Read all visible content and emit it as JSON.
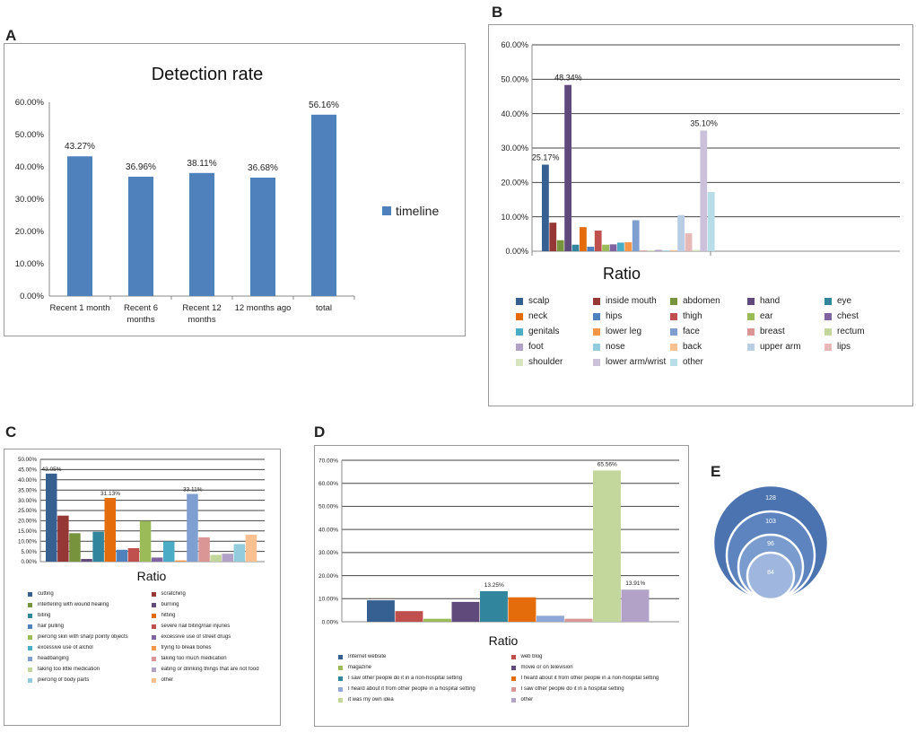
{
  "panels": {
    "a": "A",
    "b": "B",
    "c": "C",
    "d": "D",
    "e": "E"
  },
  "chart_data": [
    {
      "id": "A",
      "type": "bar",
      "title": "Detection rate",
      "categories": [
        "Recent 1 month",
        "Recent 6 months",
        "Recent 12 months",
        "12 months ago",
        "total"
      ],
      "series": [
        {
          "name": "timeline",
          "values": [
            43.27,
            36.96,
            38.11,
            36.68,
            56.16
          ]
        }
      ],
      "data_labels": [
        "43.27%",
        "36.96%",
        "38.11%",
        "36.68%",
        "56.16%"
      ],
      "yticks": [
        "0.00%",
        "10.00%",
        "20.00%",
        "30.00%",
        "40.00%",
        "50.00%",
        "60.00%"
      ],
      "ylim": [
        0,
        60
      ],
      "legend": "right",
      "color": "#4f81bd"
    },
    {
      "id": "B",
      "type": "bar",
      "title": "Ratio",
      "categories": [
        "scalp",
        "inside mouth",
        "abdomen",
        "hand",
        "eye",
        "neck",
        "hips",
        "thigh",
        "ear",
        "chest",
        "genitals",
        "lower leg",
        "face",
        "breast",
        "rectum",
        "foot",
        "nose",
        "back",
        "upper arm",
        "lips",
        "shoulder",
        "lower arm/wrist",
        "other"
      ],
      "values": [
        25.17,
        8.3,
        3.2,
        48.34,
        1.9,
        7.0,
        1.3,
        6.0,
        1.9,
        2.0,
        2.5,
        2.6,
        9.0,
        0.2,
        0.2,
        0.4,
        0.2,
        0.3,
        10.5,
        5.2,
        0.4,
        35.1,
        17.2
      ],
      "colors": [
        "#376092",
        "#953735",
        "#77933c",
        "#604a7b",
        "#31859c",
        "#e46c0a",
        "#4f81bd",
        "#c0504d",
        "#9bbb59",
        "#8064a2",
        "#4bacc6",
        "#f79646",
        "#7f9fd0",
        "#d99694",
        "#c3d69b",
        "#b3a2c7",
        "#93cddd",
        "#fac090",
        "#b9cde5",
        "#e6b9b8",
        "#d7e4bd",
        "#ccc1da",
        "#b7dee8"
      ],
      "data_labels": [
        {
          "index": 0,
          "text": "25.17%"
        },
        {
          "index": 3,
          "text": "48.34%"
        },
        {
          "index": 21,
          "text": "35.10%"
        }
      ],
      "yticks": [
        "0.00%",
        "10.00%",
        "20.00%",
        "30.00%",
        "40.00%",
        "50.00%",
        "60.00%"
      ],
      "ylim": [
        0,
        60
      ],
      "legend": "bottom"
    },
    {
      "id": "C",
      "type": "bar",
      "title": "Ratio",
      "categories": [
        "cutting",
        "scratching",
        "interfering with wound healing",
        "burning",
        "biting",
        "hitting",
        "hair pulling",
        "severe nail biting/nail injuries",
        "piercing skin with sharp pointy objects",
        "excessive use of street drugs",
        "excessive use of alchol",
        "trying to break bones",
        "headbanging",
        "taking too much medication",
        "taking too little medication",
        "eating or drinking things that are not food",
        "piercing of body parts",
        "other"
      ],
      "values": [
        43.05,
        22.5,
        13.9,
        1.3,
        14.6,
        31.13,
        5.8,
        6.6,
        19.9,
        2.0,
        9.9,
        0.6,
        33.11,
        11.9,
        3.3,
        3.9,
        8.6,
        13.2
      ],
      "colors": [
        "#376092",
        "#953735",
        "#77933c",
        "#604a7b",
        "#31859c",
        "#e46c0a",
        "#4f81bd",
        "#c0504d",
        "#9bbb59",
        "#8064a2",
        "#4bacc6",
        "#f79646",
        "#7f9fd0",
        "#d99694",
        "#c3d69b",
        "#b3a2c7",
        "#93cddd",
        "#fac090"
      ],
      "data_labels": [
        {
          "index": 0,
          "text": "43.05%"
        },
        {
          "index": 5,
          "text": "31.13%"
        },
        {
          "index": 12,
          "text": "33.11%"
        }
      ],
      "yticks": [
        "0.00%",
        "5.00%",
        "10.00%",
        "15.00%",
        "20.00%",
        "25.00%",
        "30.00%",
        "35.00%",
        "40.00%",
        "45.00%",
        "50.00%"
      ],
      "ylim": [
        0,
        50
      ],
      "legend": "bottom"
    },
    {
      "id": "D",
      "type": "bar",
      "title": "Ratio",
      "categories": [
        "Internet website",
        "web blog",
        "magazine",
        "movie or on television",
        "I saw other people do it in a non-hospital setting",
        "I heard about it from other people in a non-hospital setting",
        "I heard about it from other people in a hospital setting",
        "I saw other people do it in a hospital setting",
        "it was my own idea",
        "other"
      ],
      "values": [
        9.3,
        4.6,
        1.3,
        8.6,
        13.25,
        10.6,
        2.6,
        1.3,
        65.56,
        13.91
      ],
      "colors": [
        "#376092",
        "#c0504d",
        "#9bbb59",
        "#604a7b",
        "#31859c",
        "#e46c0a",
        "#8fa8d8",
        "#d99694",
        "#c3d69b",
        "#b3a2c7"
      ],
      "data_labels": [
        {
          "index": 4,
          "text": "13.25%"
        },
        {
          "index": 8,
          "text": "65.56%"
        },
        {
          "index": 9,
          "text": "13.91%"
        }
      ],
      "yticks": [
        "0.00%",
        "10.00%",
        "20.00%",
        "30.00%",
        "40.00%",
        "50.00%",
        "60.00%",
        "70.00%"
      ],
      "ylim": [
        0,
        70
      ],
      "legend": "bottom"
    },
    {
      "id": "E",
      "type": "nested-circles",
      "values": [
        "128",
        "103",
        "96",
        "84"
      ],
      "colors": [
        "#4a73b0",
        "#5d84bf",
        "#7a9bcd",
        "#9fb7de"
      ]
    }
  ]
}
